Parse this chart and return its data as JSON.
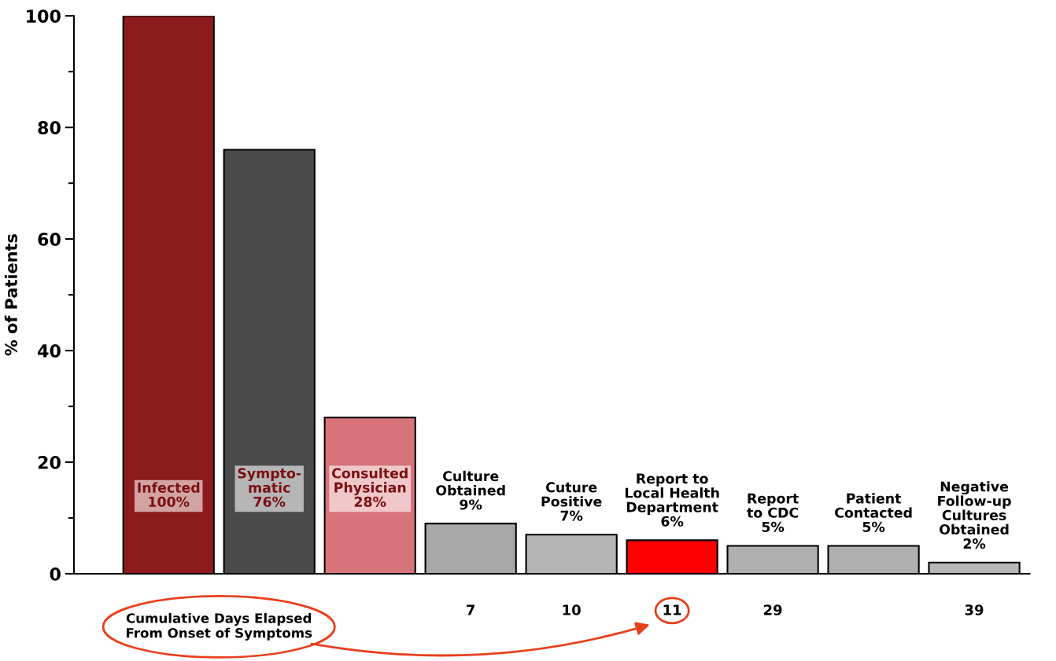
{
  "chart_data": {
    "type": "bar",
    "ylabel": "% of Patients",
    "xlabel": "Cumulative Days Elapsed\nFrom Onset of Symptoms",
    "categories": [
      null,
      null,
      null,
      "7",
      "10",
      "11",
      "29",
      null,
      "39"
    ],
    "values": [
      100,
      76,
      28,
      9,
      7,
      6,
      5,
      5,
      2
    ],
    "colors": [
      "#8e1b1b",
      "#4a4a4a",
      "#d9737a",
      "#a8a8a8",
      "#b4b4b4",
      "#ff0000",
      "#b0b0b0",
      "#b0b0b0",
      "#b8b8b8"
    ],
    "value_labels": [
      "Infected\n100%",
      "Sympto-\nmatic\n76%",
      "Consulted\nPhysician\n28%",
      "Culture\nObtained\n9%",
      "Cuture\nPositive\n7%",
      "Report to\nLocal Health\nDepartment\n6%",
      "Report\nto CDC\n5%",
      "Patient\nContacted\n5%",
      "Negative\nFollow-up\nCultures\nObtained\n2%"
    ],
    "ylim": [
      0,
      100
    ],
    "yticks": [
      0,
      20,
      40,
      60,
      80,
      100
    ],
    "grid": false,
    "legend": false
  }
}
